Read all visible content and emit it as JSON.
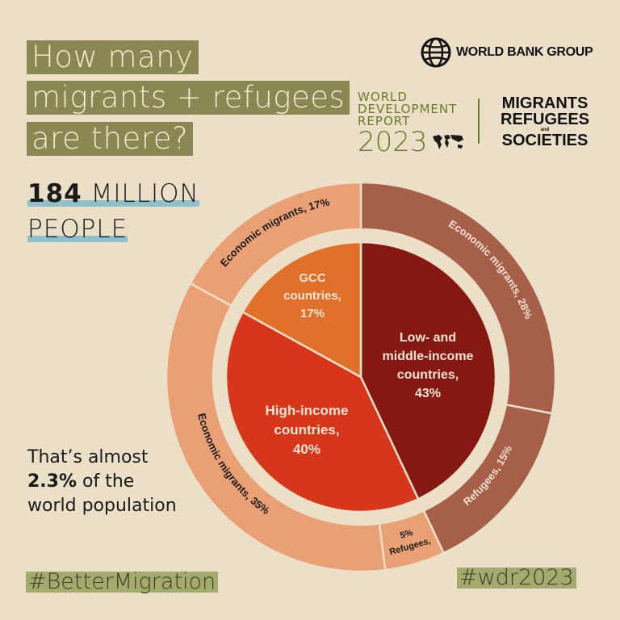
{
  "title_lines": [
    "How many",
    "migrants + refugees",
    "are there?"
  ],
  "headline": {
    "number": "184",
    "unit_line1": "MILLION",
    "line2": "PEOPLE"
  },
  "tagline": {
    "line1": "That’s almost",
    "bold": "2.3%",
    "line2_rest": " of the",
    "line3": "world population"
  },
  "hashtags": {
    "left": "#BetterMigration",
    "right": "#wdr2023"
  },
  "branding": {
    "world_bank": "WORLD BANK GROUP",
    "wdr_lines": [
      "WORLD",
      "DEVELOPMENT",
      "REPORT"
    ],
    "wdr_year": "2023",
    "report_title": [
      "MIGRANTS",
      "REFUGEES",
      "and",
      "SOCIETIES"
    ]
  },
  "colors": {
    "background": "#ecdfc7",
    "title_box": "#8a8752",
    "underline": "#8fbfc9",
    "hashtag_box": "#a3aa6c"
  },
  "chart_data": {
    "type": "pie",
    "subtype": "nested-donut",
    "inner": [
      {
        "label": "Low- and middle-income countries",
        "display": [
          "Low- and",
          "middle-income",
          "countries,",
          "43%"
        ],
        "value": 43,
        "color": "#861812"
      },
      {
        "label": "High-income countries",
        "display": [
          "High-income",
          "countries,",
          "40%"
        ],
        "value": 40,
        "color": "#d8361a"
      },
      {
        "label": "GCC countries",
        "display": [
          "GCC",
          "countries,",
          "17%"
        ],
        "value": 17,
        "color": "#e1702b"
      }
    ],
    "outer": [
      {
        "label": "Economic migrants, 28%",
        "value": 28,
        "parent": "Low- and middle-income countries",
        "color": "#a65f48"
      },
      {
        "label": "Refugees, 15%",
        "value": 15,
        "parent": "Low- and middle-income countries",
        "color": "#a65f48"
      },
      {
        "label": "Refugees, 5%",
        "display": [
          "Refugees,",
          "5%"
        ],
        "value": 5,
        "parent": "High-income countries",
        "color": "#e9a074"
      },
      {
        "label": "Economic migrants, 35%",
        "value": 35,
        "parent": "High-income countries",
        "color": "#e9a074"
      },
      {
        "label": "Economic migrants, 17%",
        "value": 17,
        "parent": "GCC countries",
        "color": "#e9a074"
      }
    ],
    "start": "top",
    "direction": "clockwise"
  }
}
